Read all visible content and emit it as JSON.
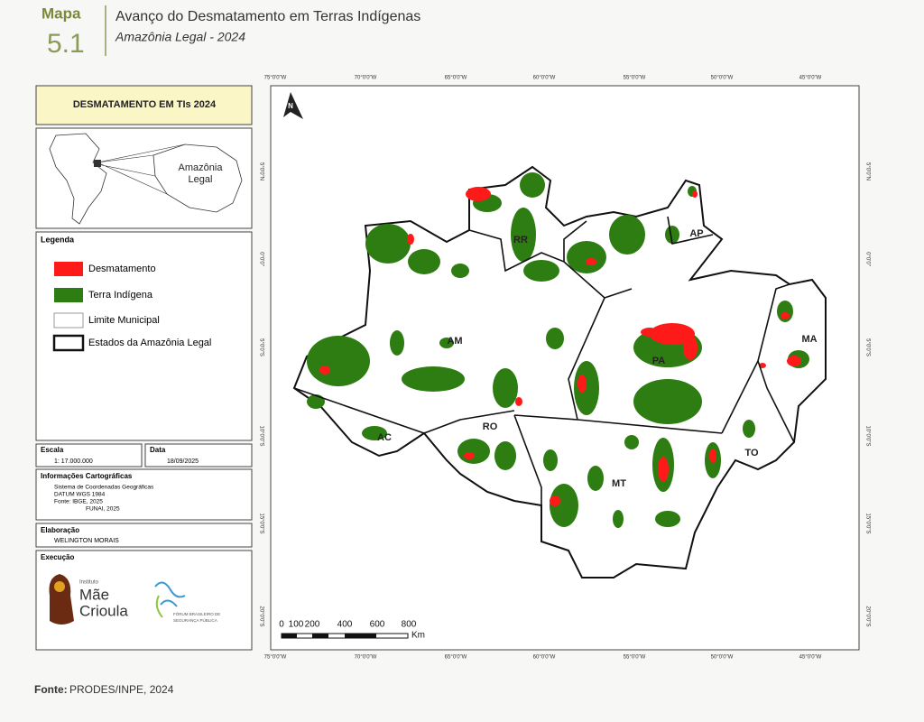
{
  "header": {
    "label": "Mapa",
    "number": "5.1",
    "title": "Avanço do Desmatamento em Terras Indígenas",
    "subtitle": "Amazônia Legal - 2024"
  },
  "sidebar": {
    "title": "DESMATAMENTO EM TIs 2024",
    "inset_label": [
      "Amazônia",
      "Legal"
    ],
    "legend": {
      "title": "Legenda",
      "items": [
        "Desmatamento",
        "Terra Indígena",
        "Limite Municipal",
        "Estados da Amazônia Legal"
      ]
    },
    "scale": {
      "label": "Escala",
      "value": "1: 17.000.000"
    },
    "date": {
      "label": "Data",
      "value": "18/09/2025"
    },
    "info": {
      "title": "Informações Cartográficas",
      "lines": [
        "Sistema de Coordenadas Geográficas",
        "DATUM WGS 1984",
        "Fonte: IBGE, 2025",
        "FUNAI, 2025"
      ]
    },
    "elaboration": {
      "title": "Elaboração",
      "name": "WELINGTON MORAIS"
    },
    "execution": {
      "title": "Execução",
      "logo1": [
        "Instituto",
        "Mãe",
        "Crioula"
      ],
      "logo2": [
        "FÓRUM BRASILEIRO DE",
        "SEGURANÇA PÚBLICA"
      ]
    }
  },
  "map": {
    "states": [
      "RR",
      "AP",
      "AM",
      "PA",
      "MA",
      "AC",
      "RO",
      "MT",
      "TO"
    ],
    "lon_ticks": [
      "75°0'0\"W",
      "70°0'0\"W",
      "65°0'0\"W",
      "60°0'0\"W",
      "55°0'0\"W",
      "50°0'0\"W",
      "45°0'0\"W"
    ],
    "lat_ticks": [
      "5°0'0\"N",
      "0°0'0\"",
      "5°0'0\"S",
      "10°0'0\"S",
      "15°0'0\"S",
      "20°0'0\"S"
    ],
    "scale_bar": {
      "labels": [
        "0",
        "100",
        "200",
        "400",
        "600",
        "800"
      ],
      "unit": "Km"
    }
  },
  "source": {
    "label": "Fonte:",
    "text": "PRODES/INPE, 2024"
  }
}
